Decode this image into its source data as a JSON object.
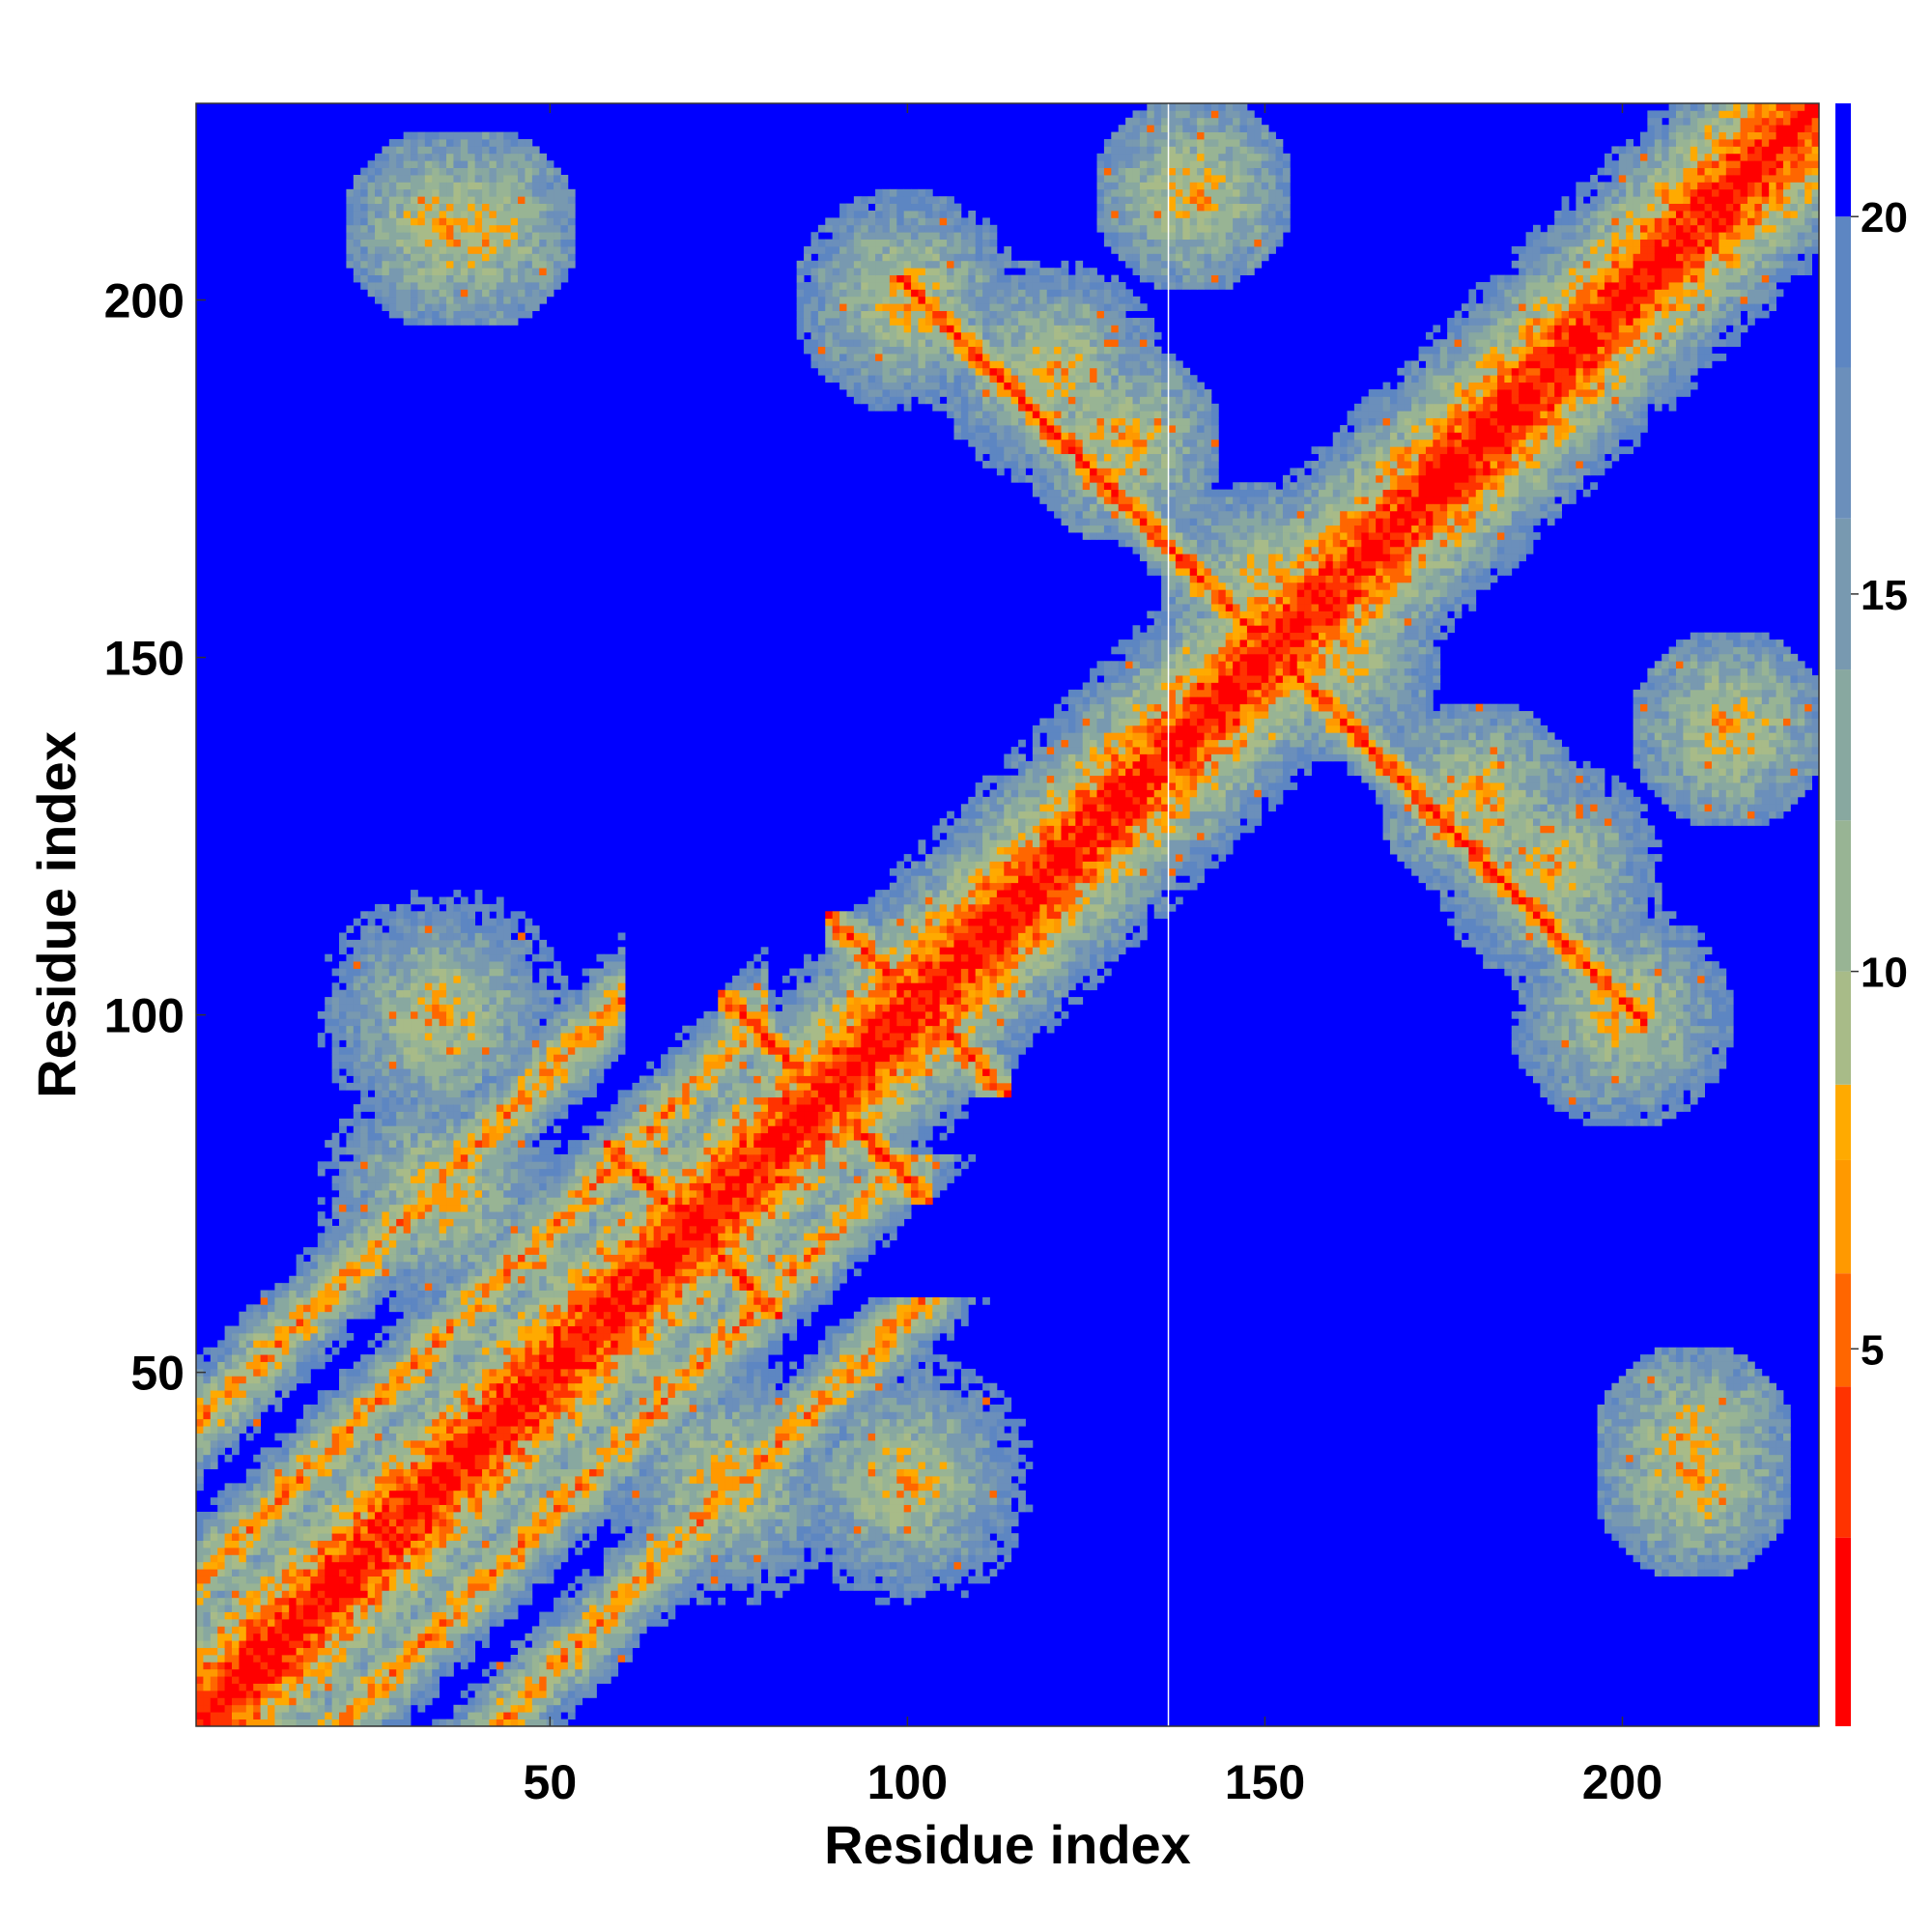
{
  "chart_data": {
    "type": "heatmap",
    "title": "",
    "xlabel": "Residue index",
    "ylabel": "Residue index",
    "n_residues": 227,
    "xlim": [
      1,
      227
    ],
    "ylim": [
      1,
      227
    ],
    "x_ticks": [
      50,
      100,
      150,
      200
    ],
    "y_ticks": [
      50,
      100,
      150,
      200
    ],
    "colorbar": {
      "ticks": [
        5,
        10,
        15,
        20
      ],
      "range": [
        0,
        21.5
      ],
      "colors": [
        {
          "max": 2.5,
          "color": "#ff0000"
        },
        {
          "max": 4.5,
          "color": "#ff3300"
        },
        {
          "max": 6.0,
          "color": "#ff6600"
        },
        {
          "max": 7.5,
          "color": "#ff9900"
        },
        {
          "max": 8.5,
          "color": "#ffaa00"
        },
        {
          "max": 10.0,
          "color": "#a8bb88"
        },
        {
          "max": 12.0,
          "color": "#98b494"
        },
        {
          "max": 14.0,
          "color": "#88a8a0"
        },
        {
          "max": 16.0,
          "color": "#7899b0"
        },
        {
          "max": 18.0,
          "color": "#6b8fbb"
        },
        {
          "max": 20.0,
          "color": "#5d86c2"
        },
        {
          "max": 99,
          "color": "#0000ff"
        }
      ]
    },
    "gap_column": 137,
    "diagonal_band_width": 3,
    "contact_features": [
      {
        "kind": "antidiagonal",
        "i_range": [
          76,
          101
        ],
        "sum": 177
      },
      {
        "kind": "antidiagonal",
        "i_range": [
          91,
          112
        ],
        "sum": 203
      },
      {
        "kind": "antidiagonal",
        "i_range": [
          60,
          80
        ],
        "sum": 140
      },
      {
        "kind": "antidiagonal",
        "i_range": [
          192,
          201
        ],
        "sum": 302
      },
      {
        "kind": "antidiagonal",
        "i_range": [
          102,
          110
        ],
        "sum": 302
      },
      {
        "kind": "parallel",
        "i_range": [
          1,
          80
        ],
        "offset": 20
      },
      {
        "kind": "parallel",
        "i_range": [
          1,
          60
        ],
        "offset": 42
      },
      {
        "kind": "blob",
        "center": [
          35,
          75
        ],
        "radius": 18
      },
      {
        "kind": "blob",
        "center": [
          35,
          100
        ],
        "radius": 18
      },
      {
        "kind": "blob",
        "center": [
          200,
          100
        ],
        "radius": 16
      },
      {
        "kind": "blob",
        "center": [
          100,
          200
        ],
        "radius": 16
      },
      {
        "kind": "blob",
        "center": [
          215,
          140
        ],
        "radius": 14
      },
      {
        "kind": "blob",
        "center": [
          160,
          150
        ],
        "radius": 15
      },
      {
        "kind": "blob",
        "center": [
          180,
          130
        ],
        "radius": 14
      },
      {
        "kind": "blob",
        "center": [
          35,
          210
        ],
        "radius": 14
      },
      {
        "kind": "blob",
        "center": [
          210,
          40
        ],
        "radius": 14
      },
      {
        "kind": "blob",
        "center": [
          120,
          190
        ],
        "radius": 16
      },
      {
        "kind": "blob",
        "center": [
          190,
          120
        ],
        "radius": 15
      }
    ]
  },
  "colors": {
    "background": "#0000ff",
    "gap_line": "#ffffff"
  }
}
